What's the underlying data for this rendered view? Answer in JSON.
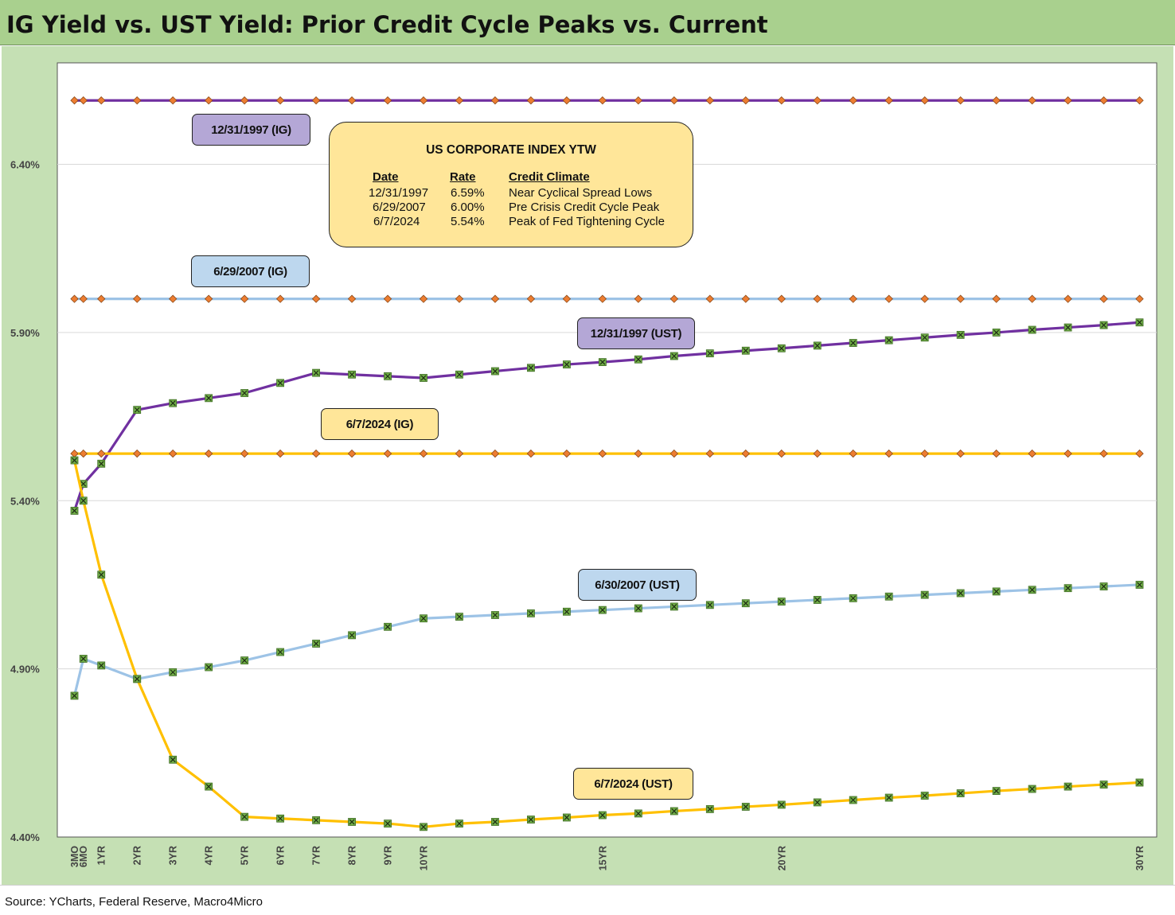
{
  "header": {
    "title": "IG Yield vs. UST Yield: Prior Credit Cycle Peaks vs. Current"
  },
  "footer": {
    "source": "Source: YCharts, Federal Reserve, Macro4Micro"
  },
  "colors": {
    "purple": "#7030a0",
    "light_blue": "#9dc3e6",
    "gold": "#ffc000",
    "marker_diamond": "#ed7d31",
    "marker_x_fill": "#70ad47",
    "label_purple": "#b4a7d6",
    "label_blue": "#bdd7ee",
    "label_gold": "#ffe699",
    "panel_bg": "#c5e0b4",
    "title_bg": "#a9d08e"
  },
  "info_box": {
    "title": "US CORPORATE INDEX YTW",
    "headers": {
      "date": "Date",
      "rate": "Rate",
      "climate": "Credit Climate"
    },
    "rows": [
      {
        "date": "12/31/1997",
        "rate": "6.59%",
        "climate": "Near Cyclical Spread Lows"
      },
      {
        "date": "6/29/2007",
        "rate": "6.00%",
        "climate": "Pre Crisis Credit Cycle Peak"
      },
      {
        "date": "6/7/2024",
        "rate": "5.54%",
        "climate": "Peak of Fed Tightening Cycle"
      }
    ]
  },
  "labels": {
    "ig_1997": "12/31/1997 (IG)",
    "ig_2007": "6/29/2007 (IG)",
    "ust_1997": "12/31/1997 (UST)",
    "ig_2024": "6/7/2024 (IG)",
    "ust_2007": "6/30/2007 (UST)",
    "ust_2024": "6/7/2024 (UST)"
  },
  "chart_data": {
    "type": "line",
    "title": "IG Yield vs. UST Yield: Prior Credit Cycle Peaks vs. Current",
    "x_unit": "maturity (years)",
    "x": [
      0.25,
      0.5,
      1,
      2,
      3,
      4,
      5,
      6,
      7,
      8,
      9,
      10,
      11,
      12,
      13,
      14,
      15,
      16,
      17,
      18,
      19,
      20,
      21,
      22,
      23,
      24,
      25,
      26,
      27,
      28,
      29,
      30
    ],
    "x_ticks": [
      {
        "x": 0.25,
        "label": "3MO"
      },
      {
        "x": 0.5,
        "label": "6MO"
      },
      {
        "x": 1,
        "label": "1YR"
      },
      {
        "x": 2,
        "label": "2YR"
      },
      {
        "x": 3,
        "label": "3YR"
      },
      {
        "x": 4,
        "label": "4YR"
      },
      {
        "x": 5,
        "label": "5YR"
      },
      {
        "x": 6,
        "label": "6YR"
      },
      {
        "x": 7,
        "label": "7YR"
      },
      {
        "x": 8,
        "label": "8YR"
      },
      {
        "x": 9,
        "label": "9YR"
      },
      {
        "x": 10,
        "label": "10YR"
      },
      {
        "x": 15,
        "label": "15YR"
      },
      {
        "x": 20,
        "label": "20YR"
      },
      {
        "x": 30,
        "label": "30YR"
      }
    ],
    "ylim": [
      4.4,
      6.6
    ],
    "y_ticks": [
      {
        "value": 4.4,
        "label": "4.40%"
      },
      {
        "value": 4.9,
        "label": "4.90%"
      },
      {
        "value": 5.4,
        "label": "5.40%"
      },
      {
        "value": 5.9,
        "label": "5.90%"
      },
      {
        "value": 6.4,
        "label": "6.40%"
      }
    ],
    "grid": "horizontal",
    "series": [
      {
        "name": "12/31/1997 (IG)",
        "color": "#7030a0",
        "marker": "diamond",
        "constant": 6.59
      },
      {
        "name": "6/29/2007 (IG)",
        "color": "#9dc3e6",
        "marker": "diamond",
        "constant": 6.0
      },
      {
        "name": "6/7/2024 (IG)",
        "color": "#ffc000",
        "marker": "diamond",
        "constant": 5.54
      },
      {
        "name": "12/31/1997 (UST)",
        "color": "#7030a0",
        "marker": "x",
        "values": [
          5.37,
          5.45,
          5.51,
          5.67,
          5.69,
          5.705,
          5.72,
          5.75,
          5.78,
          5.775,
          5.77,
          5.765,
          5.775,
          5.785,
          5.795,
          5.805,
          5.812,
          5.82,
          5.83,
          5.838,
          5.846,
          5.853,
          5.861,
          5.869,
          5.877,
          5.885,
          5.893,
          5.9,
          5.908,
          5.915,
          5.922,
          5.93
        ]
      },
      {
        "name": "6/30/2007 (UST)",
        "color": "#9dc3e6",
        "marker": "x",
        "values": [
          4.82,
          4.93,
          4.91,
          4.87,
          4.89,
          4.905,
          4.925,
          4.95,
          4.975,
          5.0,
          5.025,
          5.05,
          5.055,
          5.06,
          5.065,
          5.07,
          5.075,
          5.08,
          5.085,
          5.09,
          5.095,
          5.1,
          5.105,
          5.11,
          5.115,
          5.12,
          5.125,
          5.13,
          5.135,
          5.14,
          5.145,
          5.15
        ]
      },
      {
        "name": "6/7/2024 (UST)",
        "color": "#ffc000",
        "marker": "x",
        "values": [
          5.52,
          5.4,
          5.18,
          4.87,
          4.63,
          4.55,
          4.46,
          4.455,
          4.45,
          4.445,
          4.44,
          4.43,
          4.44,
          4.445,
          4.452,
          4.458,
          4.465,
          4.47,
          4.477,
          4.483,
          4.49,
          4.496,
          4.503,
          4.51,
          4.517,
          4.523,
          4.53,
          4.537,
          4.543,
          4.55,
          4.556,
          4.562
        ]
      }
    ]
  }
}
